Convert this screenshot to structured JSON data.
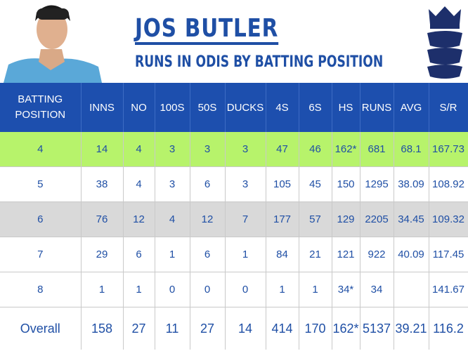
{
  "header": {
    "title": "JOS BUTLER",
    "subtitle": "RUNS IN ODIS BY BATTING POSITION"
  },
  "table": {
    "columns": [
      "BATTING POSITION",
      "INNS",
      "NO",
      "100S",
      "50S",
      "DUCKS",
      "4S",
      "6S",
      "HS",
      "RUNS",
      "AVG",
      "S/R"
    ],
    "rows": [
      [
        "4",
        "14",
        "4",
        "3",
        "3",
        "3",
        "47",
        "46",
        "162*",
        "681",
        "68.1",
        "167.73"
      ],
      [
        "5",
        "38",
        "4",
        "3",
        "6",
        "3",
        "105",
        "45",
        "150",
        "1295",
        "38.09",
        "108.92"
      ],
      [
        "6",
        "76",
        "12",
        "4",
        "12",
        "7",
        "177",
        "57",
        "129",
        "2205",
        "34.45",
        "109.32"
      ],
      [
        "7",
        "29",
        "6",
        "1",
        "6",
        "1",
        "84",
        "21",
        "121",
        "922",
        "40.09",
        "117.45"
      ],
      [
        "8",
        "1",
        "1",
        "0",
        "0",
        "0",
        "1",
        "1",
        "34*",
        "34",
        null,
        "141.67"
      ],
      [
        "Overall",
        "158",
        "27",
        "11",
        "27",
        "14",
        "414",
        "170",
        "162*",
        "5137",
        "39.21",
        "116.2"
      ]
    ]
  }
}
